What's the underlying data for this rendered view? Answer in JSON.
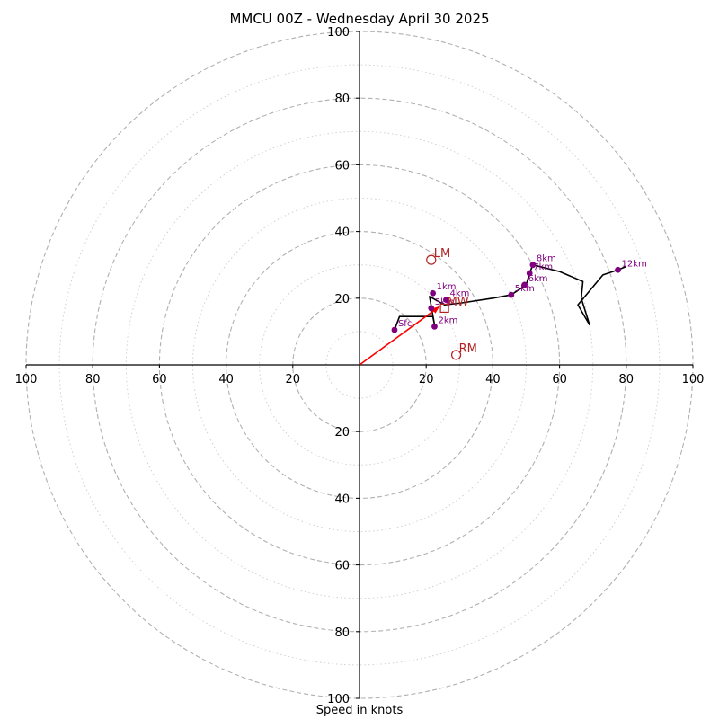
{
  "chart_data": {
    "type": "hodograph",
    "title": "MMCU 00Z - Wednesday April 30 2025",
    "xlabel": "Speed in knots",
    "axis_range": [
      -100,
      100
    ],
    "x_tick_labels": [
      "100",
      "80",
      "60",
      "40",
      "20",
      "20",
      "40",
      "60",
      "80",
      "100"
    ],
    "x_tick_values": [
      -100,
      -80,
      -60,
      -40,
      -20,
      20,
      40,
      60,
      80,
      100
    ],
    "y_tick_labels": [
      "100",
      "80",
      "60",
      "40",
      "20",
      "20",
      "40",
      "60",
      "80",
      "100"
    ],
    "y_tick_values": [
      100,
      80,
      60,
      40,
      20,
      -20,
      -40,
      -60,
      -80,
      -100
    ],
    "rings_dashed": [
      20,
      40,
      60,
      80,
      100
    ],
    "rings_dotted": [
      10,
      30,
      50,
      70,
      90
    ],
    "hodograph_trace": [
      [
        10.5,
        10.5
      ],
      [
        12,
        14.5
      ],
      [
        22,
        14.5
      ],
      [
        22.5,
        12
      ],
      [
        21,
        20.5
      ],
      [
        25.5,
        18
      ],
      [
        30,
        18.5
      ],
      [
        40,
        20
      ],
      [
        45.5,
        21
      ],
      [
        50,
        24
      ],
      [
        51,
        27.5
      ],
      [
        52,
        30
      ],
      [
        60,
        28
      ],
      [
        67,
        25
      ],
      [
        66.5,
        20
      ],
      [
        69,
        12
      ],
      [
        65.5,
        18
      ],
      [
        73,
        27
      ],
      [
        77.5,
        28.5
      ],
      [
        80,
        29.5
      ]
    ],
    "height_points": [
      {
        "label": "Sfc",
        "u": 10.5,
        "v": 10.5
      },
      {
        "label": "1km",
        "u": 22,
        "v": 21.5
      },
      {
        "label": "2km",
        "u": 22.5,
        "v": 11.5
      },
      {
        "label": "3km",
        "u": 21.5,
        "v": 17
      },
      {
        "label": "4km",
        "u": 26,
        "v": 19.5
      },
      {
        "label": "5km",
        "u": 45.5,
        "v": 21
      },
      {
        "label": "6km",
        "u": 49.5,
        "v": 24
      },
      {
        "label": "7km",
        "u": 51,
        "v": 27.5
      },
      {
        "label": "8km",
        "u": 52,
        "v": 30
      },
      {
        "label": "12km",
        "u": 77.5,
        "v": 28.5
      }
    ],
    "storm_motions": [
      {
        "label": "LM",
        "u": 21.5,
        "v": 31.5,
        "marker": "circle"
      },
      {
        "label": "RM",
        "u": 29,
        "v": 3,
        "marker": "circle"
      },
      {
        "label": "MW",
        "u": 25.5,
        "v": 17,
        "marker": "square"
      }
    ],
    "shear_vector": {
      "from": [
        0,
        0
      ],
      "to": [
        24,
        17.5
      ]
    },
    "colors": {
      "trace": "#000000",
      "height_points": "#800080",
      "storm_motion": "#b22222",
      "shear_vector": "#ff0000",
      "grid": "#b0b0b0"
    }
  }
}
